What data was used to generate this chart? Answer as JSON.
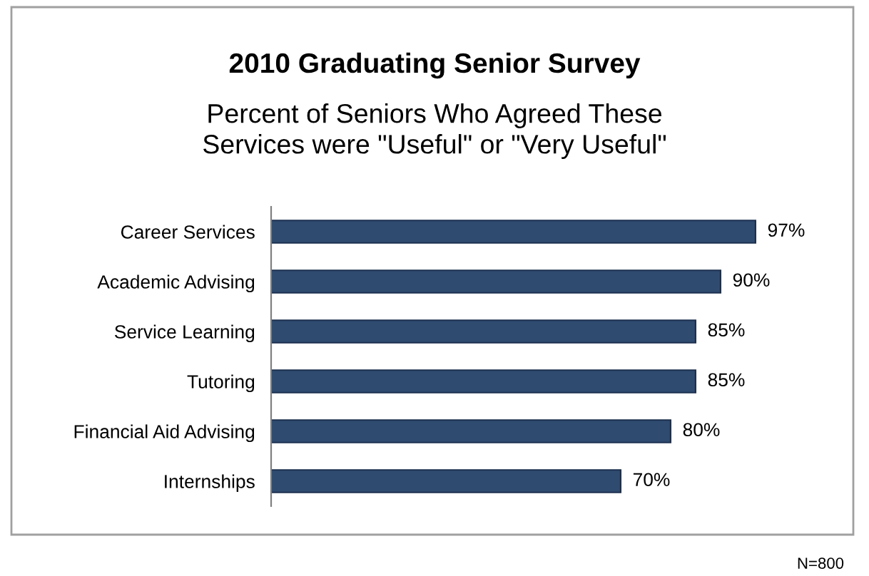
{
  "chart_data": {
    "type": "bar",
    "orientation": "horizontal",
    "relative": false,
    "title": "2010 Graduating Senior Survey",
    "subtitle": "Percent of Seniors Who Agreed These\nServices were \"Useful\" or \"Very Useful\"",
    "categories": [
      "Career Services",
      "Academic Advising",
      "Service Learning",
      "Tutoring",
      "Financial Aid Advising",
      "Internships"
    ],
    "values": [
      97,
      90,
      85,
      85,
      80,
      70
    ],
    "value_labels": [
      "97%",
      "90%",
      "85%",
      "85%",
      "80%",
      "70%"
    ],
    "color": "#2f4b70",
    "annotations": [
      "N=800"
    ],
    "grid": false,
    "legend": false
  }
}
